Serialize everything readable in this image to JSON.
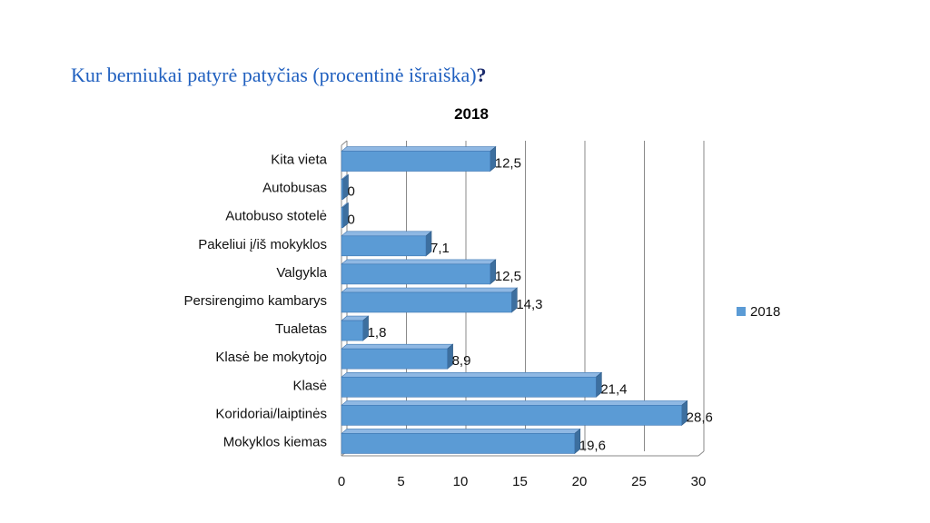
{
  "slide": {
    "title": "Kur berniukai patyrė patyčias (procentinė išraiška)",
    "title_mark": "?"
  },
  "chart_data": {
    "type": "bar",
    "orientation": "horizontal",
    "title": "2018",
    "categories": [
      "Kita vieta",
      "Autobusas",
      "Autobuso stotelė",
      "Pakeliui į/iš mokyklos",
      "Valgykla",
      "Persirengimo kambarys",
      "Tualetas",
      "Klasė be mokytojo",
      "Klasė",
      "Koridoriai/laiptinės",
      "Mokyklos kiemas"
    ],
    "series": [
      {
        "name": "2018",
        "values": [
          12.5,
          0,
          0,
          7.1,
          12.5,
          14.3,
          1.8,
          8.9,
          21.4,
          28.6,
          19.6
        ],
        "labels": [
          "12,5",
          "0",
          "0",
          "7,1",
          "12,5",
          "14,3",
          "1,8",
          "8,9",
          "21,4",
          "28,6",
          "19,6"
        ],
        "color": "#5b9bd5"
      }
    ],
    "xlim": [
      0,
      30
    ],
    "xticks": [
      "0",
      "5",
      "10",
      "15",
      "20",
      "25",
      "30"
    ],
    "grid": true,
    "legend_position": "right",
    "style": "3d"
  }
}
